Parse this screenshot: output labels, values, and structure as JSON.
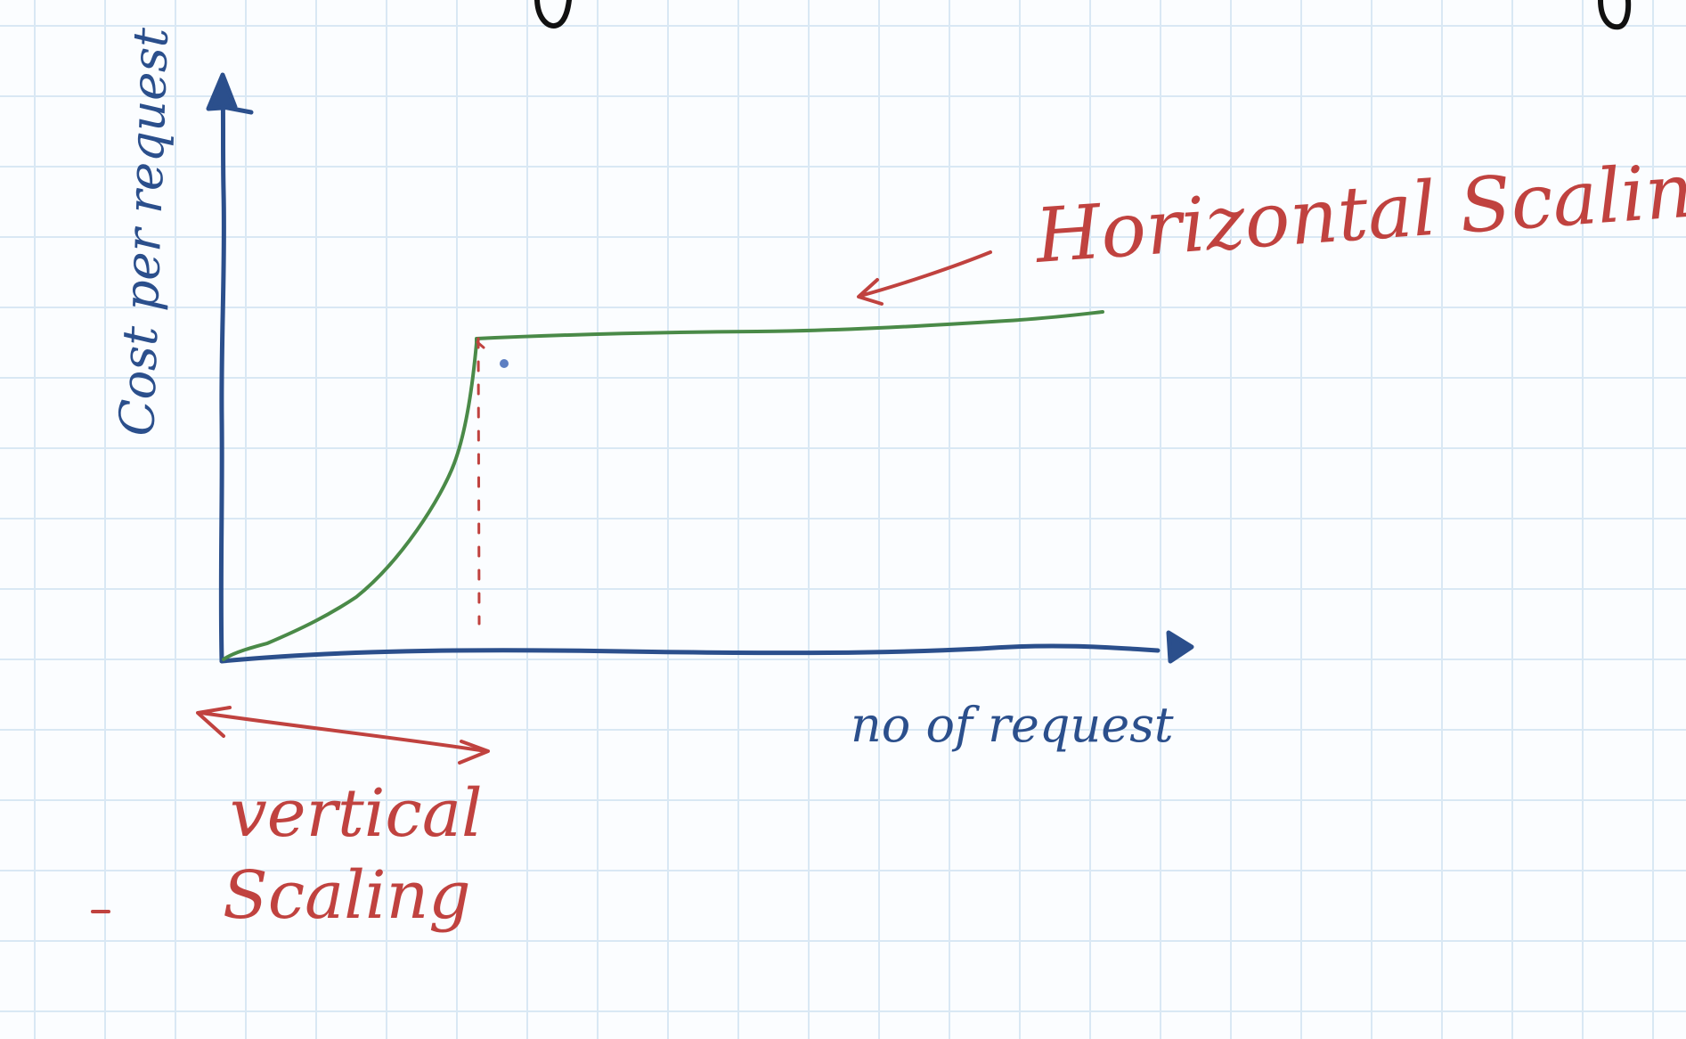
{
  "sketch": {
    "y_axis_label": "Cost per request",
    "x_axis_label": "no of request",
    "horizontal_label": "Horizontal Scaling",
    "vertical_label_line1": "vertical",
    "vertical_label_line2": "Scaling"
  },
  "colors": {
    "axis": "#2b4f8c",
    "curve": "#4a8a48",
    "annotation": "#c0423f",
    "grid": "#d9e8f4"
  }
}
